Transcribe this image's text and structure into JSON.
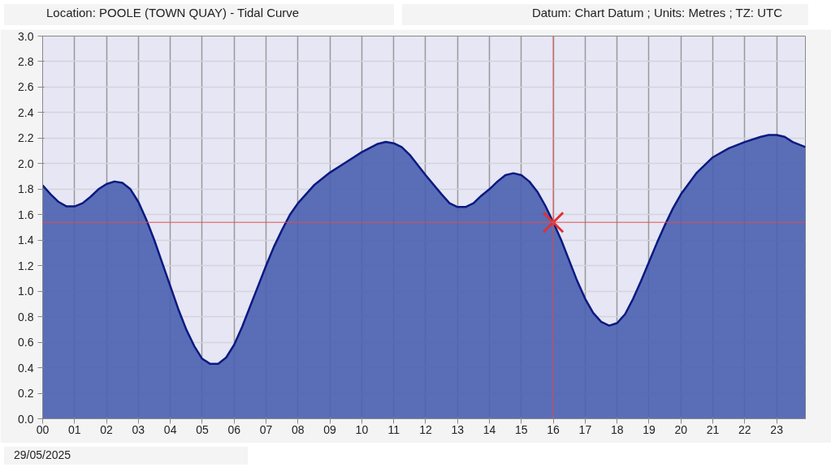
{
  "chart_data": {
    "type": "area",
    "title": "Location: POOLE (TOWN QUAY) - Tidal Curve",
    "subtitle": "Datum: Chart Datum ; Units: Metres ; TZ: UTC",
    "annotations": [
      "29/05/2025"
    ],
    "xlim": [
      0,
      23.9
    ],
    "ylim": [
      0,
      3.0
    ],
    "xticks": [
      {
        "value": 0,
        "label": "00"
      },
      {
        "value": 1,
        "label": "01"
      },
      {
        "value": 2,
        "label": "02"
      },
      {
        "value": 3,
        "label": "03"
      },
      {
        "value": 4,
        "label": "04"
      },
      {
        "value": 5,
        "label": "05"
      },
      {
        "value": 6,
        "label": "06"
      },
      {
        "value": 7,
        "label": "07"
      },
      {
        "value": 8,
        "label": "08"
      },
      {
        "value": 9,
        "label": "09"
      },
      {
        "value": 10,
        "label": "10"
      },
      {
        "value": 11,
        "label": "11"
      },
      {
        "value": 12,
        "label": "12"
      },
      {
        "value": 13,
        "label": "13"
      },
      {
        "value": 14,
        "label": "14"
      },
      {
        "value": 15,
        "label": "15"
      },
      {
        "value": 16,
        "label": "16"
      },
      {
        "value": 17,
        "label": "17"
      },
      {
        "value": 18,
        "label": "18"
      },
      {
        "value": 19,
        "label": "19"
      },
      {
        "value": 20,
        "label": "20"
      },
      {
        "value": 21,
        "label": "21"
      },
      {
        "value": 22,
        "label": "22"
      },
      {
        "value": 23,
        "label": "23"
      }
    ],
    "yticks": [
      {
        "value": 0,
        "label": "0.0"
      },
      {
        "value": 0.2,
        "label": "0.2"
      },
      {
        "value": 0.4,
        "label": "0.4"
      },
      {
        "value": 0.6,
        "label": "0.6"
      },
      {
        "value": 0.8,
        "label": "0.8"
      },
      {
        "value": 1.0,
        "label": "1.0"
      },
      {
        "value": 1.2,
        "label": "1.2"
      },
      {
        "value": 1.4,
        "label": "1.4"
      },
      {
        "value": 1.6,
        "label": "1.6"
      },
      {
        "value": 1.8,
        "label": "1.8"
      },
      {
        "value": 2.0,
        "label": "2.0"
      },
      {
        "value": 2.2,
        "label": "2.2"
      },
      {
        "value": 2.4,
        "label": "2.4"
      },
      {
        "value": 2.6,
        "label": "2.6"
      },
      {
        "value": 2.8,
        "label": "2.8"
      },
      {
        "value": 3.0,
        "label": "3.0"
      }
    ],
    "grid": true,
    "ref_lines": [
      {
        "axis": "x",
        "value": 16,
        "color": "#e05050"
      },
      {
        "axis": "y",
        "value": 1.54,
        "color": "#e05050"
      }
    ],
    "series": [
      {
        "color": "#4a5fb0",
        "x": [
          0,
          0.25,
          0.5,
          0.75,
          1,
          1.25,
          1.5,
          1.75,
          2,
          2.25,
          2.5,
          2.75,
          3,
          3.25,
          3.5,
          3.75,
          4,
          4.25,
          4.5,
          4.75,
          5,
          5.25,
          5.5,
          5.75,
          6,
          6.25,
          6.5,
          6.75,
          7,
          7.25,
          7.5,
          7.75,
          8,
          8.5,
          9,
          9.5,
          10,
          10.5,
          10.75,
          11,
          11.25,
          11.5,
          12,
          12.5,
          12.75,
          13,
          13.25,
          13.5,
          13.75,
          14,
          14.25,
          14.5,
          14.75,
          15,
          15.25,
          15.5,
          15.75,
          16,
          16.25,
          16.5,
          16.75,
          17,
          17.25,
          17.5,
          17.75,
          18,
          18.25,
          18.5,
          18.75,
          19,
          19.25,
          19.5,
          19.75,
          20,
          20.5,
          21,
          21.5,
          22,
          22.5,
          22.75,
          23,
          23.25,
          23.5,
          23.9
        ],
        "values": [
          1.83,
          1.76,
          1.7,
          1.665,
          1.665,
          1.69,
          1.74,
          1.8,
          1.84,
          1.86,
          1.85,
          1.8,
          1.7,
          1.56,
          1.4,
          1.22,
          1.04,
          0.86,
          0.7,
          0.57,
          0.47,
          0.43,
          0.43,
          0.48,
          0.58,
          0.72,
          0.88,
          1.04,
          1.2,
          1.35,
          1.48,
          1.6,
          1.69,
          1.83,
          1.93,
          2.01,
          2.09,
          2.155,
          2.17,
          2.16,
          2.13,
          2.07,
          1.91,
          1.76,
          1.69,
          1.66,
          1.66,
          1.69,
          1.75,
          1.8,
          1.86,
          1.91,
          1.925,
          1.91,
          1.86,
          1.78,
          1.67,
          1.54,
          1.4,
          1.24,
          1.08,
          0.94,
          0.83,
          0.76,
          0.73,
          0.75,
          0.82,
          0.94,
          1.08,
          1.23,
          1.38,
          1.52,
          1.65,
          1.76,
          1.93,
          2.05,
          2.12,
          2.17,
          2.21,
          2.225,
          2.225,
          2.21,
          2.17,
          2.13
        ]
      },
      {
        "type": "scatter",
        "marker": "cross",
        "color": "#e03030",
        "x": [
          16
        ],
        "values": [
          1.54
        ]
      }
    ]
  }
}
